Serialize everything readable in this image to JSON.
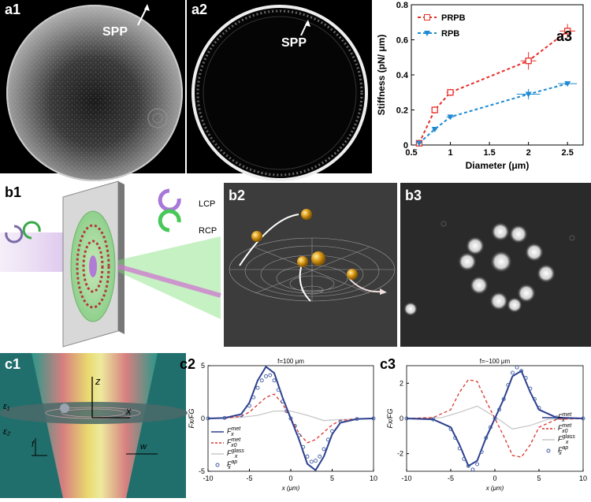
{
  "panels": {
    "a1": {
      "label": "a1",
      "annotation": "SPP"
    },
    "a2": {
      "label": "a2",
      "annotation": "SPP"
    },
    "a3": {
      "label": "a3"
    },
    "b1": {
      "label": "b1",
      "lcp": "LCP",
      "rcp": "RCP"
    },
    "b2": {
      "label": "b2"
    },
    "b3": {
      "label": "b3"
    },
    "c1": {
      "label": "c1",
      "z": "z",
      "x": "x",
      "eps1": "ε₁",
      "eps2": "ε₂",
      "f": "f",
      "w": "w"
    },
    "c2": {
      "label": "c2"
    },
    "c3": {
      "label": "c3"
    }
  },
  "chart_data": [
    {
      "id": "a3",
      "type": "scatter",
      "title": "",
      "xlabel": "Diameter (μm)",
      "ylabel": "Stiffness (pN/ μm)",
      "xlim": [
        0.5,
        2.7
      ],
      "ylim": [
        0,
        0.8
      ],
      "xticks": [
        "0.5",
        "1",
        "1.5",
        "2",
        "2.5"
      ],
      "yticks": [
        "0",
        "0.2",
        "0.4",
        "0.6",
        "0.8"
      ],
      "legend": "top-left",
      "series": [
        {
          "name": "PRPB",
          "color": "#e8302a",
          "marker": "square",
          "x": [
            0.6,
            0.8,
            1.0,
            2.0,
            2.5
          ],
          "y": [
            0.01,
            0.2,
            0.3,
            0.48,
            0.65
          ],
          "xerr": [
            0,
            0.03,
            0.05,
            0.1,
            0.1
          ],
          "yerr": [
            0,
            0.02,
            0.02,
            0.05,
            0.04
          ]
        },
        {
          "name": "RPB",
          "color": "#1f8ad2",
          "marker": "triangle-down",
          "x": [
            0.6,
            0.8,
            1.0,
            2.0,
            2.5
          ],
          "y": [
            0.01,
            0.09,
            0.16,
            0.29,
            0.35
          ],
          "xerr": [
            0,
            0.03,
            0.05,
            0.15,
            0.12
          ],
          "yerr": [
            0,
            0.01,
            0.01,
            0.03,
            0.01
          ]
        }
      ]
    },
    {
      "id": "c2",
      "type": "line",
      "title": "f=100 μm",
      "xlabel": "x (μm)",
      "ylabel": "Fx/FG",
      "xlim": [
        -10,
        10
      ],
      "ylim": [
        -5,
        5
      ],
      "xticks": [
        "-10",
        "-5",
        "0",
        "5",
        "10"
      ],
      "yticks": [
        "-5",
        "0",
        "5"
      ],
      "legend": "bottom-left",
      "series": [
        {
          "name": "F_x^met",
          "legend_main": "F",
          "legend_sup": "met",
          "legend_sub": "x",
          "color": "#2c3f8e",
          "style": "solid",
          "x": [
            -10,
            -8,
            -6,
            -5,
            -4,
            -3,
            -2,
            -1,
            0,
            1,
            2,
            3,
            4,
            5,
            6,
            8,
            10
          ],
          "y": [
            0,
            0.05,
            0.4,
            1.5,
            3.6,
            4.9,
            4.3,
            2.0,
            0,
            -2.0,
            -4.3,
            -4.9,
            -3.6,
            -1.5,
            -0.4,
            -0.05,
            0
          ]
        },
        {
          "name": "F_x0^met",
          "legend_main": "F",
          "legend_sup": "met",
          "legend_sub": "x0",
          "color": "#d9352e",
          "style": "dashed",
          "x": [
            -10,
            -8,
            -6,
            -5,
            -4,
            -3,
            -2,
            -1,
            0,
            1,
            2,
            3,
            4,
            5,
            6,
            8,
            10
          ],
          "y": [
            0,
            0.02,
            0.2,
            0.6,
            1.3,
            2.0,
            2.3,
            1.4,
            0,
            -1.4,
            -2.3,
            -2.0,
            -1.3,
            -0.6,
            -0.2,
            -0.02,
            0
          ]
        },
        {
          "name": "F_x^glass",
          "legend_main": "F",
          "legend_sup": "glass",
          "legend_sub": "x",
          "color": "#c8c8c8",
          "style": "solid",
          "x": [
            -10,
            -6,
            -4,
            -2,
            0,
            2,
            4,
            6,
            10
          ],
          "y": [
            0,
            0.1,
            0.3,
            0.7,
            0.7,
            0.3,
            -0.2,
            -0.1,
            0
          ]
        },
        {
          "name": "F_x^ap",
          "legend_main": "F",
          "legend_sup": "ap",
          "legend_sub": "x",
          "color": "#3e5aa0",
          "style": "markers",
          "x": [
            -10,
            -8,
            -6,
            -5,
            -4.5,
            -4,
            -3.5,
            -3,
            -2.5,
            -2,
            -1.5,
            -1,
            -0.5,
            0,
            0.5,
            1,
            1.5,
            2,
            2.5,
            3,
            3.5,
            4,
            4.5,
            5,
            6,
            8,
            10
          ],
          "y": [
            0,
            0.05,
            0.3,
            1.2,
            2.0,
            2.9,
            3.6,
            4.0,
            4.1,
            3.6,
            2.7,
            1.6,
            0.7,
            0,
            -0.7,
            -1.6,
            -2.7,
            -3.6,
            -4.1,
            -4.0,
            -3.6,
            -2.9,
            -2.0,
            -1.2,
            -0.3,
            -0.05,
            0
          ]
        }
      ]
    },
    {
      "id": "c3",
      "type": "line",
      "title": "f=−100 μm",
      "xlabel": "x (μm)",
      "ylabel": "Fx/FG",
      "xlim": [
        -10,
        10
      ],
      "ylim": [
        -3,
        3
      ],
      "xticks": [
        "-10",
        "-5",
        "0",
        "5",
        "10"
      ],
      "yticks": [
        "-2",
        "0",
        "2"
      ],
      "legend": "bottom-right",
      "series": [
        {
          "name": "F_x^met",
          "legend_main": "F",
          "legend_sup": "met",
          "legend_sub": "x",
          "color": "#2c3f8e",
          "style": "solid",
          "x": [
            -10,
            -7,
            -5,
            -4,
            -3,
            -2,
            -1,
            0,
            1,
            2,
            3,
            4,
            5,
            7,
            10
          ],
          "y": [
            0,
            -0.05,
            -0.5,
            -1.5,
            -2.7,
            -2.4,
            -1.1,
            0,
            1.1,
            2.4,
            2.7,
            1.5,
            0.5,
            0.05,
            0
          ]
        },
        {
          "name": "F_x0^met",
          "legend_main": "F",
          "legend_sup": "met",
          "legend_sub": "x0",
          "color": "#d9352e",
          "style": "dashed",
          "x": [
            -10,
            -7,
            -5,
            -4,
            -3,
            -2,
            -1,
            0,
            1,
            2,
            3,
            4,
            5,
            7,
            10
          ],
          "y": [
            0,
            0.05,
            0.5,
            1.5,
            2.2,
            2.1,
            1.0,
            0,
            -1.0,
            -2.1,
            -2.2,
            -1.5,
            -0.5,
            -0.05,
            0
          ]
        },
        {
          "name": "F_x^glass",
          "legend_main": "F",
          "legend_sup": "glass",
          "legend_sub": "x",
          "color": "#c8c8c8",
          "style": "solid",
          "x": [
            -10,
            -6,
            -4,
            -2,
            0,
            2,
            4,
            6,
            10
          ],
          "y": [
            0,
            0.05,
            0.35,
            0.7,
            0.1,
            -0.6,
            -0.4,
            -0.05,
            0
          ]
        },
        {
          "name": "F_x^ap",
          "legend_main": "F",
          "legend_sup": "ap",
          "legend_sub": "x",
          "color": "#3e5aa0",
          "style": "markers",
          "x": [
            -10,
            -7,
            -5,
            -4.5,
            -4,
            -3.5,
            -3,
            -2.5,
            -2,
            -1.5,
            -1,
            -0.5,
            0,
            0.5,
            1,
            1.5,
            2,
            2.5,
            3,
            3.5,
            4,
            4.5,
            5,
            7,
            10
          ],
          "y": [
            0,
            -0.05,
            -0.6,
            -1.1,
            -1.7,
            -2.3,
            -2.7,
            -2.9,
            -2.6,
            -1.9,
            -1.1,
            -0.5,
            0,
            0.5,
            1.1,
            1.9,
            2.6,
            2.9,
            2.7,
            2.3,
            1.7,
            1.1,
            0.6,
            0.05,
            0
          ]
        }
      ]
    }
  ]
}
